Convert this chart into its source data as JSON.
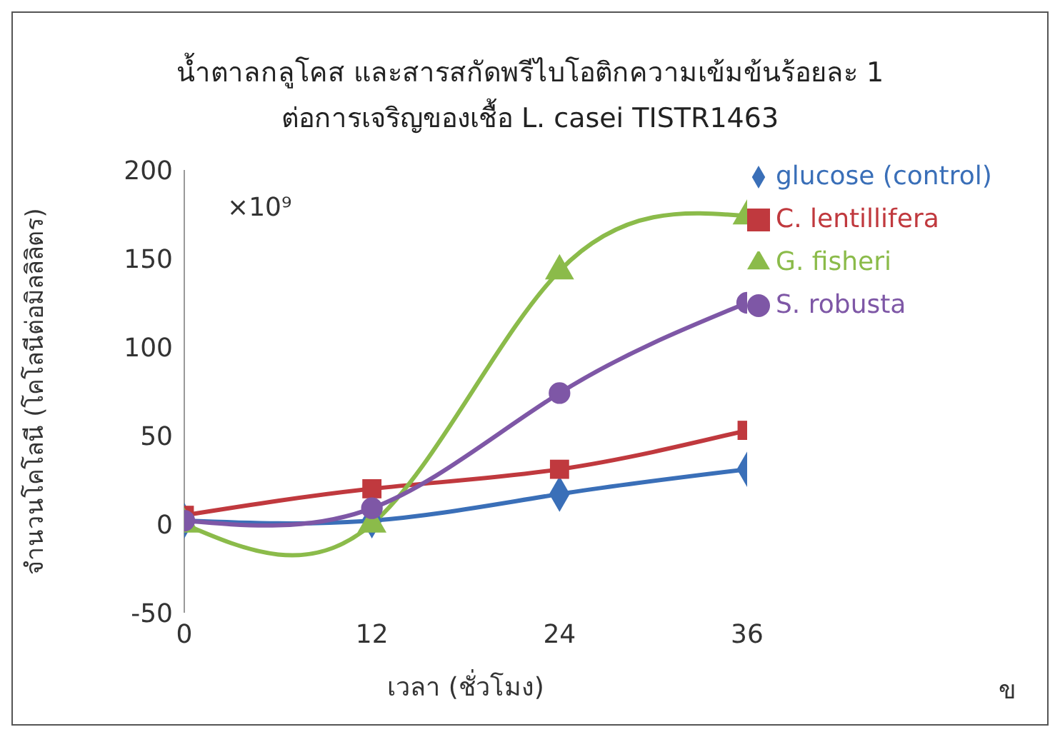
{
  "chart_data": {
    "type": "line",
    "title": "น้ำตาลกลูโคส และสารสกัดพรีไบโอติกความเข้มข้นร้อยละ 1",
    "subtitle": "ต่อการเจริญของเชื้อ L. casei TISTR1463",
    "xlabel": "เวลา (ชั่วโมง)",
    "ylabel": "จำนวนโคโลนี (โคโลนีต่อมิลลิลิตร)",
    "annotations": [
      "×10⁹",
      "ข"
    ],
    "x": [
      0,
      12,
      24,
      36
    ],
    "series": [
      {
        "name": "glucose (control)",
        "color": "#3a6fb8",
        "marker": "diamond",
        "values": [
          2,
          2,
          17,
          31
        ]
      },
      {
        "name": "C. lentillifera",
        "color": "#c0393e",
        "marker": "square",
        "values": [
          5,
          20,
          31,
          53
        ]
      },
      {
        "name": "G. fisheri",
        "color": "#8bbb4a",
        "marker": "triangle",
        "values": [
          0,
          0,
          143,
          174
        ]
      },
      {
        "name": "S. robusta",
        "color": "#7e57a6",
        "marker": "circle",
        "values": [
          2,
          9,
          74,
          125
        ]
      }
    ],
    "xlim": [
      0,
      36
    ],
    "xticks": [
      0,
      12,
      24,
      36
    ],
    "ylim": [
      -50,
      200
    ],
    "yticks": [
      -50,
      0,
      50,
      100,
      150,
      200
    ],
    "grid": false,
    "legend": "right"
  }
}
